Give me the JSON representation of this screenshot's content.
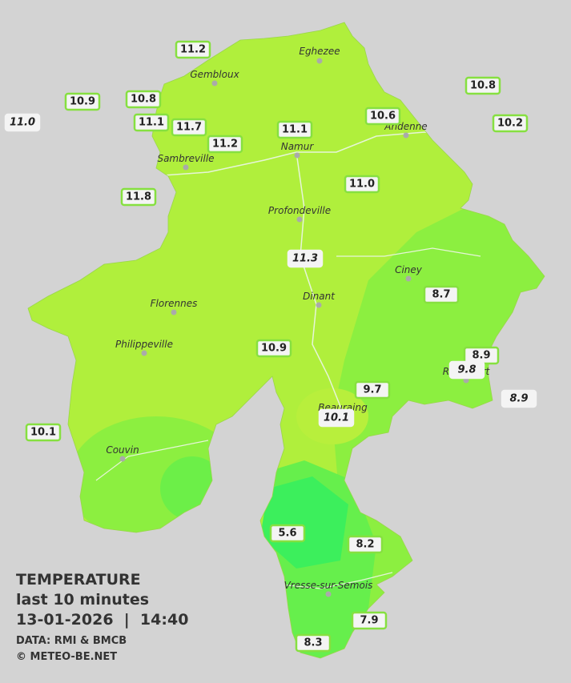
{
  "title": "TEMPERATURE",
  "subtitle": "last 10 minutes",
  "datetime": "13-01-2026  |  14:40",
  "source": "DATA: RMI & BMCB",
  "copyright": "© METEO-BE.NET",
  "cities": [
    {
      "name": "Eghezee"
    },
    {
      "name": "Gembloux"
    },
    {
      "name": "Andenne"
    },
    {
      "name": "Namur"
    },
    {
      "name": "Sambreville"
    },
    {
      "name": "Profondeville"
    },
    {
      "name": "Ciney"
    },
    {
      "name": "Dinant"
    },
    {
      "name": "Florennes"
    },
    {
      "name": "Philippeville"
    },
    {
      "name": "Rochefort"
    },
    {
      "name": "Beauraing"
    },
    {
      "name": "Couvin"
    },
    {
      "name": "Vresse-sur-Semois"
    }
  ],
  "stations": [
    {
      "label": "11.2",
      "italic": false
    },
    {
      "label": "10.9",
      "italic": false
    },
    {
      "label": "10.8",
      "italic": false
    },
    {
      "label": "11.0",
      "italic": true
    },
    {
      "label": "11.1",
      "italic": false
    },
    {
      "label": "11.7",
      "italic": false
    },
    {
      "label": "11.2",
      "italic": false
    },
    {
      "label": "11.1",
      "italic": false
    },
    {
      "label": "10.6",
      "italic": false
    },
    {
      "label": "10.8",
      "italic": false
    },
    {
      "label": "10.2",
      "italic": false
    },
    {
      "label": "11.8",
      "italic": false
    },
    {
      "label": "11.0",
      "italic": false
    },
    {
      "label": "11.3",
      "italic": true
    },
    {
      "label": "8.7",
      "italic": false
    },
    {
      "label": "10.9",
      "italic": false
    },
    {
      "label": "8.9",
      "italic": false
    },
    {
      "label": "9.8",
      "italic": true
    },
    {
      "label": "9.7",
      "italic": false
    },
    {
      "label": "10.1",
      "italic": true
    },
    {
      "label": "8.9",
      "italic": true
    },
    {
      "label": "10.1",
      "italic": false
    },
    {
      "label": "5.6",
      "italic": false
    },
    {
      "label": "8.2",
      "italic": false
    },
    {
      "label": "7.9",
      "italic": false
    },
    {
      "label": "8.3",
      "italic": false
    }
  ]
}
